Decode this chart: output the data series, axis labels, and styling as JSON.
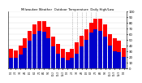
{
  "title": "Milwaukee Weather  Outdoor Temperature  Daily High/Low",
  "background_color": "#ffffff",
  "bar_color_high": "#ff0000",
  "bar_color_low": "#0000cc",
  "ylim": [
    0,
    100
  ],
  "ytick_labels": [
    "0",
    "10",
    "20",
    "30",
    "40",
    "50",
    "60",
    "70",
    "80",
    "90",
    "100"
  ],
  "ytick_values": [
    0,
    10,
    20,
    30,
    40,
    50,
    60,
    70,
    80,
    90,
    100
  ],
  "labels": [
    "1/2",
    "2/2",
    "3/2",
    "4/2",
    "5/2",
    "6/2",
    "7/2",
    "8/2",
    "9/2",
    "10/2",
    "11/2",
    "12/2",
    "1/3",
    "2/3",
    "3/3",
    "4/3",
    "5/3",
    "6/3",
    "7/3",
    "8/3",
    "9/3",
    "10/3",
    "11/3",
    "12/3",
    "1/4"
  ],
  "highs": [
    34,
    32,
    40,
    52,
    66,
    76,
    83,
    82,
    72,
    55,
    43,
    34,
    29,
    34,
    46,
    57,
    68,
    80,
    86,
    86,
    76,
    60,
    52,
    48,
    36
  ],
  "lows": [
    18,
    18,
    24,
    36,
    48,
    60,
    66,
    64,
    52,
    38,
    26,
    18,
    14,
    18,
    26,
    38,
    50,
    62,
    68,
    66,
    56,
    40,
    30,
    28,
    20
  ],
  "dotted_cols": [
    13,
    14,
    15,
    16,
    17,
    18
  ],
  "yaxis_right": true
}
